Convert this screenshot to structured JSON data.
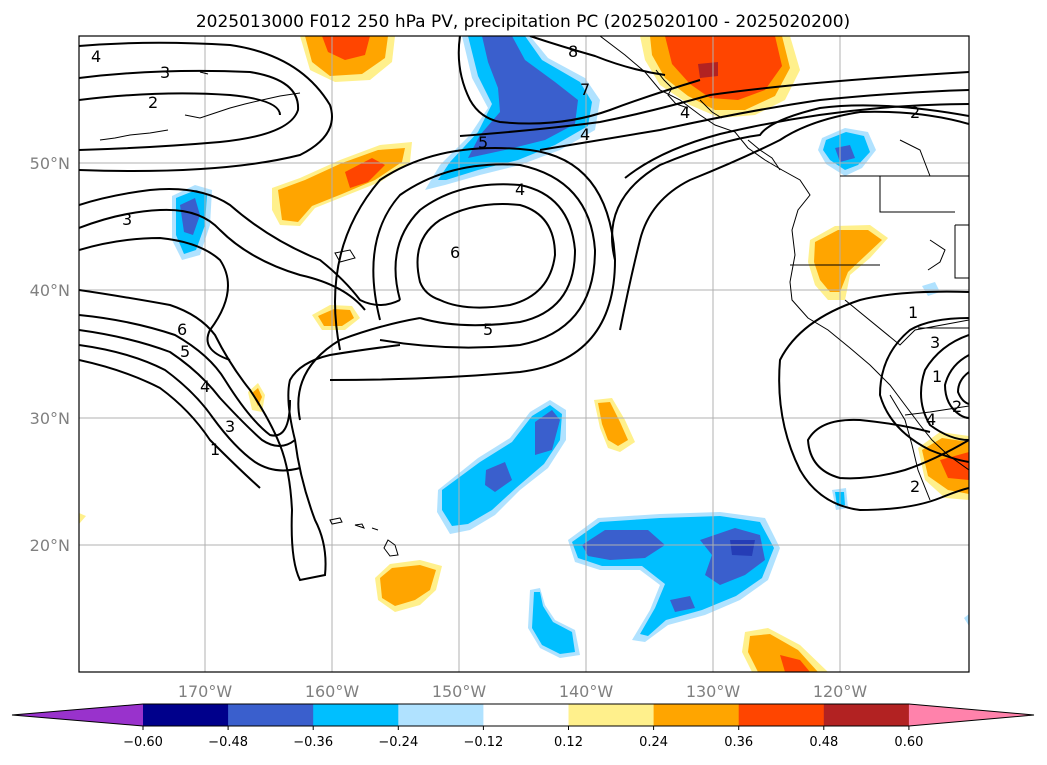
{
  "title": "2025013000 F012 250 hPa PV, precipitation PC (2025020100 - 2025020200)",
  "latitude_labels": [
    "50°N",
    "40°N",
    "30°N",
    "20°N"
  ],
  "longitude_labels": [
    "170°W",
    "160°W",
    "150°W",
    "140°W",
    "130°W",
    "120°W"
  ],
  "colorbar": {
    "ticks": [
      "−0.60",
      "−0.48",
      "−0.36",
      "−0.24",
      "−0.12",
      "0.12",
      "0.24",
      "0.36",
      "0.48",
      "0.60"
    ],
    "colors": [
      "#9932cc",
      "#00008b",
      "#3a5fcd",
      "#00bfff",
      "#b0e2ff",
      "#ffffff",
      "#fff08c",
      "#ffa500",
      "#ff4500",
      "#b22222",
      "#ff82ab"
    ]
  },
  "pv_contour_labels": [
    "4",
    "3",
    "2",
    "3",
    "6",
    "5",
    "4",
    "3",
    "1",
    "2",
    "1",
    "4",
    "6",
    "5",
    "4",
    "5",
    "8",
    "7",
    "4",
    "2",
    "1",
    "3",
    "4",
    "2"
  ],
  "colors": {
    "neg_light": "#b0e2ff",
    "neg_mid": "#00bfff",
    "neg_strong": "#3a5fcd",
    "pos_light": "#fff08c",
    "pos_mid": "#ffa500",
    "pos_strong": "#ff4500",
    "pos_extreme": "#b22222"
  }
}
